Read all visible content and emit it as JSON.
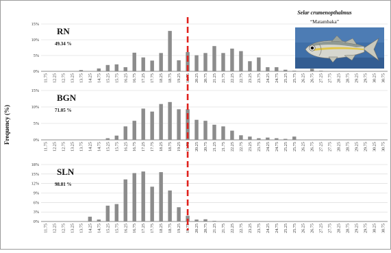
{
  "figure": {
    "ylabel": "Frequency (%)",
    "species_name": "Selar crumenopthalmus",
    "common_name": "“Matambaka”",
    "fish_icon": "fish-photo"
  },
  "colors": {
    "bar": "#8c8c8c",
    "reference_line": "#e0201b",
    "grid": "#d4d4d4",
    "axis": "#8a8a8a",
    "photo_background": "#3f6fa8"
  },
  "chart_data": [
    {
      "type": "bar",
      "title": "RN",
      "annotation": "49.34 %",
      "ylabel": "Frequency (%)",
      "ylim": [
        0,
        15
      ],
      "yticks": [
        0,
        5,
        10,
        15
      ],
      "ytick_labels": [
        "0%",
        "5%",
        "10%",
        "15%"
      ],
      "categories": [
        "11.75",
        "12.25",
        "12.75",
        "13.25",
        "13.75",
        "14.25",
        "14.75",
        "15.25",
        "15.75",
        "16.25",
        "16.75",
        "17.25",
        "17.75",
        "18.25",
        "18.75",
        "19.25",
        "19.75",
        "20.25",
        "20.75",
        "21.25",
        "21.75",
        "22.25",
        "22.75",
        "23.25",
        "23.75",
        "24.25",
        "24.75",
        "25.25",
        "25.75",
        "26.25",
        "26.75",
        "27.25",
        "27.75",
        "28.25",
        "28.75",
        "29.25",
        "29.75",
        "30.25",
        "30.75"
      ],
      "values": [
        0,
        0,
        0,
        0,
        0.4,
        0,
        0.9,
        2.0,
        2.2,
        1.3,
        5.9,
        4.4,
        3.4,
        5.8,
        12.8,
        3.5,
        6.1,
        5.1,
        5.8,
        8.0,
        5.8,
        7.2,
        6.4,
        3.2,
        4.4,
        1.3,
        1.3,
        0.5,
        0.2,
        0.1,
        0.8,
        0.2,
        0.1,
        0,
        0,
        0,
        0,
        0,
        0
      ],
      "grid": true,
      "reference_category": "19.75"
    },
    {
      "type": "bar",
      "title": "BGN",
      "annotation": "71.05 %",
      "ylabel": "Frequency (%)",
      "ylim": [
        0,
        15
      ],
      "yticks": [
        0,
        5,
        10,
        15
      ],
      "ytick_labels": [
        "0%",
        "5%",
        "10%",
        "15%"
      ],
      "categories": [
        "11.75",
        "12.25",
        "12.75",
        "13.25",
        "13.75",
        "14.25",
        "14.75",
        "15.25",
        "15.75",
        "16.25",
        "16.75",
        "17.25",
        "17.75",
        "18.25",
        "18.75",
        "19.25",
        "19.75",
        "20.25",
        "20.75",
        "21.25",
        "21.75",
        "22.25",
        "22.75",
        "23.25",
        "23.75",
        "24.25",
        "24.75",
        "25.25",
        "25.75",
        "26.25",
        "26.75",
        "27.25",
        "27.75",
        "28.25",
        "28.75",
        "29.25",
        "29.75",
        "30.25",
        "30.75"
      ],
      "values": [
        0,
        0,
        0,
        0,
        0,
        0,
        0.1,
        0.5,
        1.3,
        4.1,
        5.8,
        9.5,
        8.6,
        10.9,
        11.5,
        9.3,
        9.3,
        6.1,
        5.8,
        4.6,
        4.1,
        2.8,
        1.4,
        1.0,
        0.5,
        0.7,
        0.5,
        0.3,
        1.0,
        0.1,
        0.1,
        0,
        0,
        0,
        0,
        0,
        0,
        0,
        0
      ],
      "grid": true,
      "reference_category": "19.75"
    },
    {
      "type": "bar",
      "title": "SLN",
      "annotation": "98.81 %",
      "ylabel": "Frequency (%)",
      "ylim": [
        0,
        18
      ],
      "yticks": [
        0,
        3,
        6,
        9,
        12,
        15,
        18
      ],
      "ytick_labels": [
        "0%",
        "3%",
        "6%",
        "9%",
        "12%",
        "15%",
        "18%"
      ],
      "categories": [
        "11.75",
        "12.25",
        "12.75",
        "13.25",
        "13.75",
        "14.25",
        "14.75",
        "15.25",
        "15.75",
        "16.25",
        "16.75",
        "17.25",
        "17.75",
        "18.25",
        "18.75",
        "19.25",
        "19.75",
        "20.25",
        "20.75",
        "21.25",
        "21.75",
        "22.25",
        "22.75",
        "23.25",
        "23.75",
        "24.25",
        "24.75",
        "25.25",
        "25.75",
        "26.25",
        "26.75",
        "27.25",
        "27.75",
        "28.25",
        "28.75",
        "29.25",
        "29.75",
        "30.25",
        "30.75"
      ],
      "values": [
        0,
        0,
        0,
        0,
        0,
        1.5,
        0.6,
        5.0,
        5.5,
        13.3,
        15.3,
        15.8,
        11.0,
        15.6,
        9.8,
        4.5,
        1.8,
        0.6,
        0.7,
        0.2,
        0,
        0,
        0,
        0,
        0,
        0,
        0,
        0,
        0,
        0,
        0,
        0,
        0,
        0,
        0,
        0,
        0,
        0,
        0
      ],
      "grid": true,
      "reference_category": "19.75"
    }
  ]
}
